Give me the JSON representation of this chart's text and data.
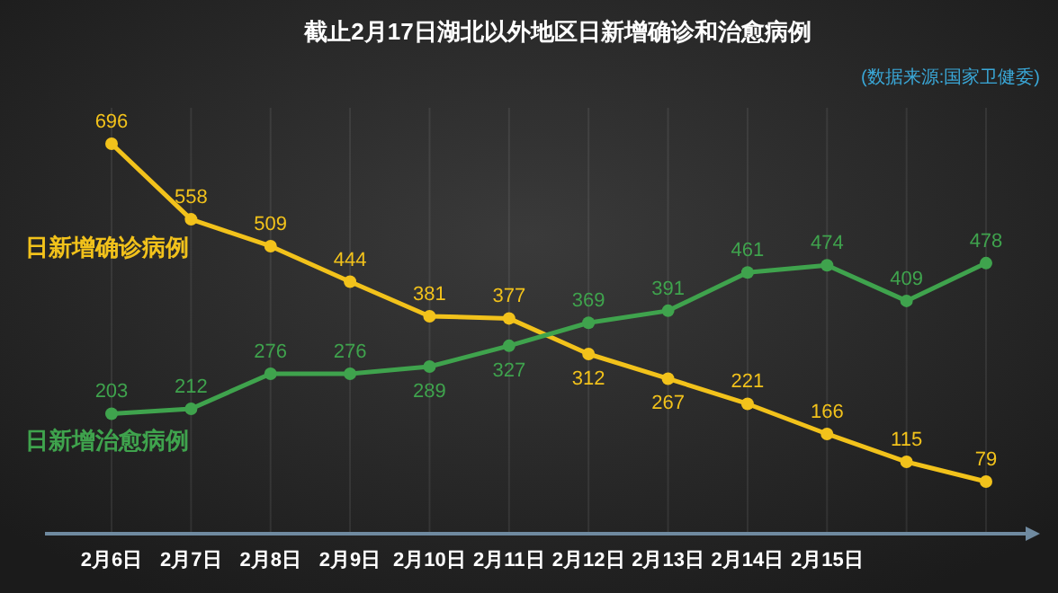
{
  "chart_data": {
    "type": "line",
    "title": "截止2月17日湖北以外地区日新增确诊和治愈病例",
    "annotations": [
      "(数据来源:国家卫健委)"
    ],
    "categories": [
      "2月6日",
      "2月7日",
      "2月8日",
      "2月9日",
      "2月10日",
      "2月11日",
      "2月12日",
      "2月13日",
      "2月14日",
      "2月15日",
      null,
      null
    ],
    "series": [
      {
        "name": "日新增确诊病例",
        "color": "#f2c21b",
        "values": [
          696,
          558,
          509,
          444,
          381,
          377,
          312,
          267,
          221,
          166,
          115,
          79
        ]
      },
      {
        "name": "日新增治愈病例",
        "color": "#3fa34d",
        "values": [
          203,
          212,
          276,
          276,
          289,
          327,
          369,
          391,
          461,
          474,
          409,
          478
        ]
      }
    ],
    "marker": "circle",
    "line_style": "solid",
    "data_labels": true,
    "grid": "x",
    "legend": false
  }
}
